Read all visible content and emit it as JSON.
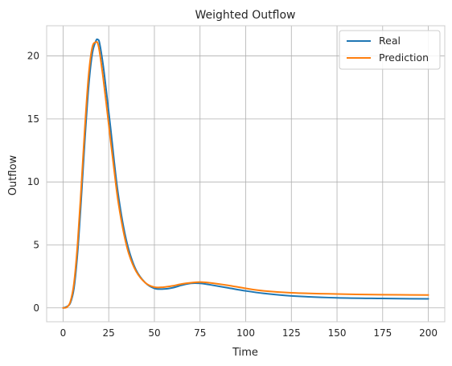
{
  "chart_data": {
    "type": "line",
    "title": "Weighted Outflow",
    "xlabel": "Time",
    "ylabel": "Outflow",
    "xlim": [
      -9,
      209
    ],
    "ylim": [
      -1.1,
      22.4
    ],
    "grid": true,
    "legend_position": "top-right",
    "xticks": [
      0,
      25,
      50,
      75,
      100,
      125,
      150,
      175,
      200
    ],
    "yticks": [
      0,
      5,
      10,
      15,
      20
    ],
    "series": [
      {
        "name": "Real",
        "color": "#1f77b4",
        "x": [
          0,
          2,
          4,
          6,
          8,
          10,
          12,
          14,
          16,
          18,
          19,
          20,
          22,
          24,
          26,
          28,
          30,
          33,
          36,
          40,
          45,
          50,
          55,
          60,
          65,
          70,
          75,
          80,
          90,
          100,
          110,
          125,
          150,
          175,
          200
        ],
        "y": [
          0,
          0.1,
          0.4,
          1.6,
          4.5,
          8.8,
          13.5,
          17.6,
          20.2,
          21.2,
          21.3,
          21.0,
          19.2,
          16.8,
          14.3,
          11.6,
          9.2,
          6.5,
          4.6,
          3.0,
          2.0,
          1.55,
          1.5,
          1.6,
          1.8,
          1.95,
          1.95,
          1.85,
          1.6,
          1.35,
          1.15,
          0.95,
          0.8,
          0.75,
          0.72
        ]
      },
      {
        "name": "Prediction",
        "color": "#ff7f0e",
        "x": [
          0,
          2,
          4,
          6,
          8,
          10,
          12,
          14,
          16,
          18,
          19,
          20,
          22,
          24,
          26,
          28,
          30,
          33,
          36,
          40,
          45,
          50,
          55,
          60,
          65,
          70,
          75,
          80,
          90,
          100,
          110,
          125,
          150,
          175,
          200
        ],
        "y": [
          0,
          0.05,
          0.5,
          2.0,
          5.2,
          9.7,
          14.5,
          18.5,
          20.7,
          21.1,
          21.0,
          20.3,
          18.2,
          15.8,
          13.3,
          10.9,
          8.6,
          6.1,
          4.3,
          2.9,
          2.0,
          1.65,
          1.65,
          1.75,
          1.9,
          2.0,
          2.05,
          2.0,
          1.8,
          1.55,
          1.35,
          1.2,
          1.1,
          1.05,
          1.02
        ]
      }
    ]
  }
}
